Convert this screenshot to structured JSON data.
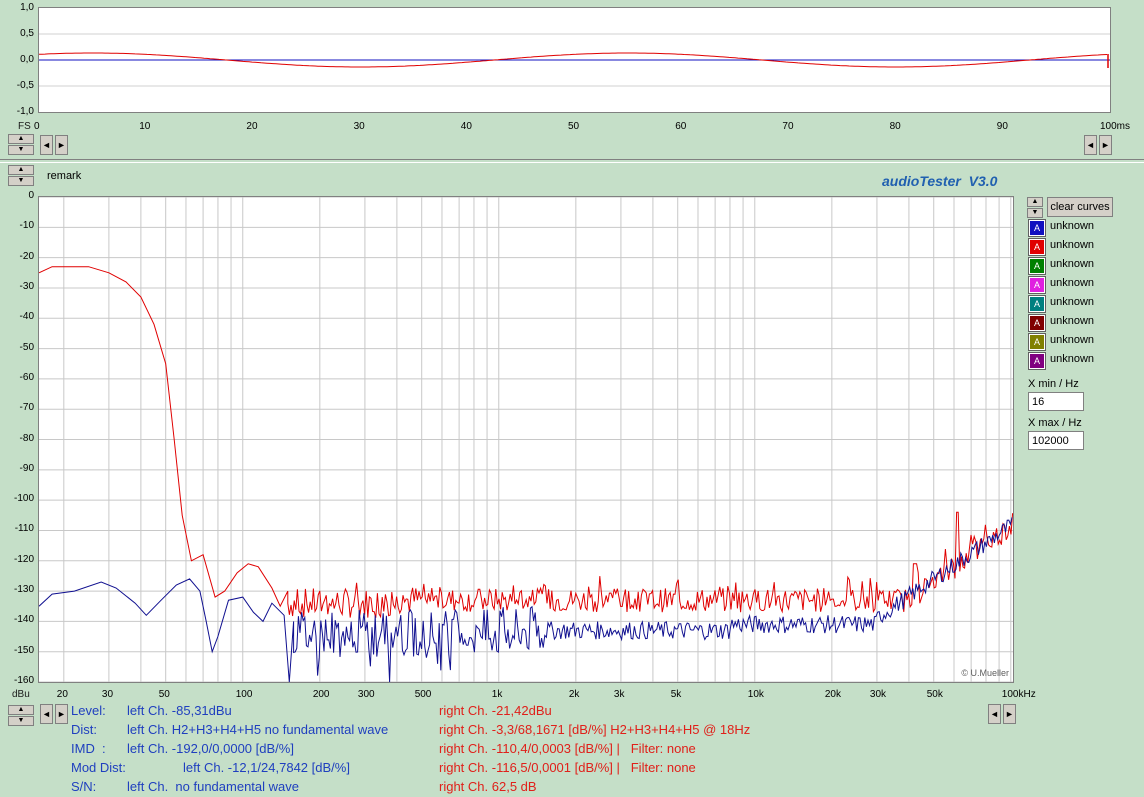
{
  "time_plot": {
    "y_ticks": [
      "1,0",
      "0,5",
      "0,0",
      "-0,5",
      "-1,0"
    ],
    "x_ticks": [
      "0",
      "10",
      "20",
      "30",
      "40",
      "50",
      "60",
      "70",
      "80",
      "90",
      "100ms"
    ],
    "y_unit": "FS"
  },
  "remark_label": "remark",
  "app_title": "audioTester  V3.0",
  "watermark": "© U.Mueller",
  "spectrum": {
    "y_unit": "dBu",
    "y_ticks": [
      "0",
      "-10",
      "-20",
      "-30",
      "-40",
      "-50",
      "-60",
      "-70",
      "-80",
      "-90",
      "-100",
      "-110",
      "-120",
      "-130",
      "-140",
      "-150",
      "-160"
    ],
    "x_ticks": [
      "20",
      "30",
      "50",
      "100",
      "200",
      "300",
      "500",
      "1k",
      "2k",
      "3k",
      "5k",
      "10k",
      "20k",
      "30k",
      "50k",
      "100kHz"
    ]
  },
  "clear_curves_label": "clear curves",
  "legend": [
    {
      "color": "#1010c0",
      "glyph": "A",
      "label": "unknown"
    },
    {
      "color": "#e00000",
      "glyph": "A",
      "label": "unknown"
    },
    {
      "color": "#008000",
      "glyph": "A",
      "label": "unknown"
    },
    {
      "color": "#e020e0",
      "glyph": "A",
      "label": "unknown"
    },
    {
      "color": "#008080",
      "glyph": "A",
      "label": "unknown"
    },
    {
      "color": "#800000",
      "glyph": "A",
      "label": "unknown"
    },
    {
      "color": "#808000",
      "glyph": "A",
      "label": "unknown"
    },
    {
      "color": "#800080",
      "glyph": "A",
      "label": "unknown"
    }
  ],
  "xmin": {
    "label": "X min / Hz",
    "value": "16"
  },
  "xmax": {
    "label": "X max / Hz",
    "value": "102000"
  },
  "measurements": {
    "level": {
      "name": "Level:",
      "left": "left Ch. -85,31dBu",
      "right": "right Ch. -21,42dBu"
    },
    "dist": {
      "name": "Dist:",
      "left": "left Ch. H2+H3+H4+H5 no fundamental wave",
      "right": "right Ch. -3,3/68,1671 [dB/%] H2+H3+H4+H5 @ 18Hz"
    },
    "imd": {
      "name": "IMD  :",
      "left": "left Ch. -192,0/0,0000 [dB/%]",
      "right": "right Ch. -110,4/0,0003 [dB/%] |   Filter: none"
    },
    "moddist": {
      "name": "Mod Dist:",
      "left": "left Ch. -12,1/24,7842 [dB/%]",
      "right": "right Ch. -116,5/0,0001 [dB/%] |   Filter: none"
    },
    "sn": {
      "name": "S/N:",
      "left": "left Ch.  no fundamental wave",
      "right": "right Ch. 62,5 dB"
    }
  }
}
